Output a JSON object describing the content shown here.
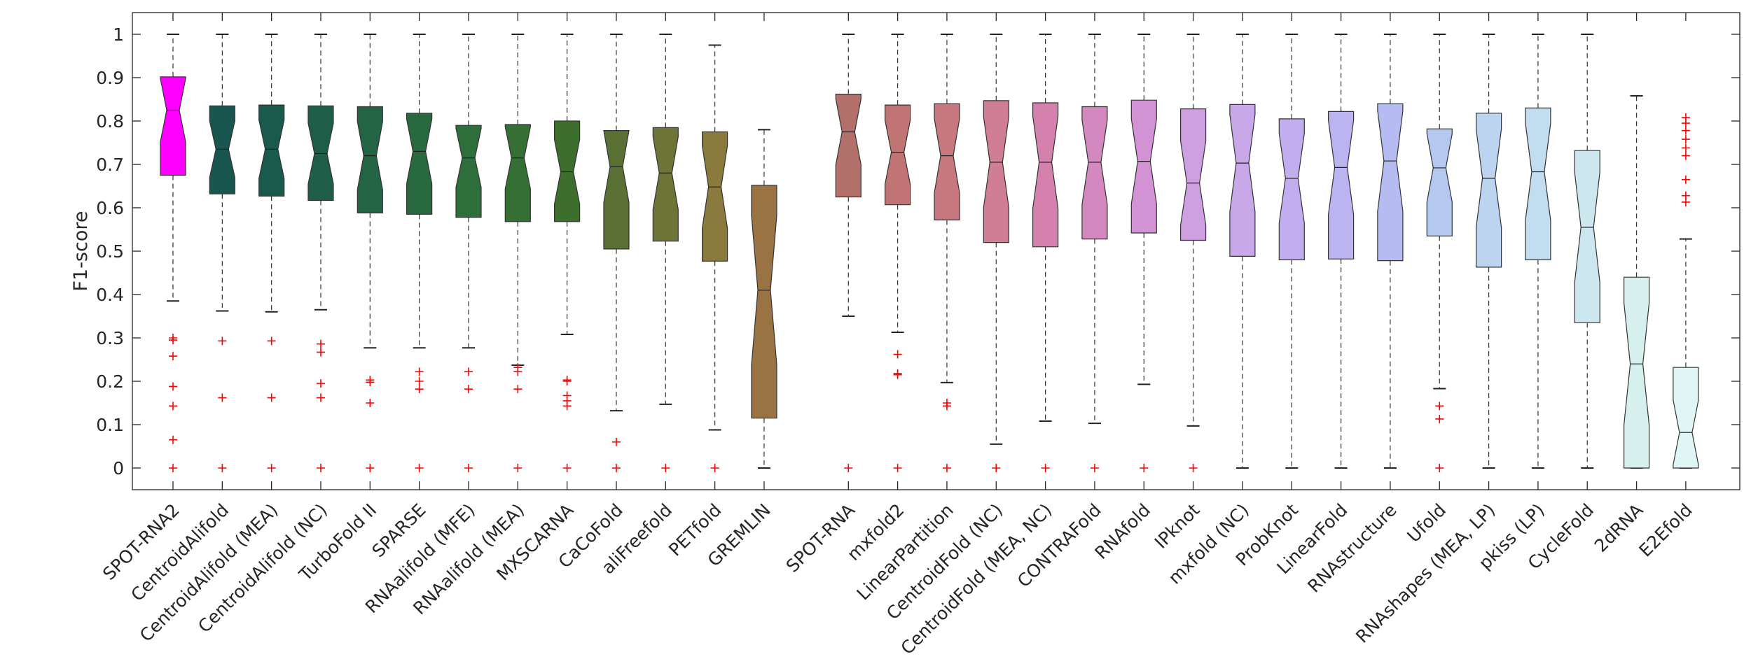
{
  "chart_data": {
    "type": "boxplot",
    "ylabel": "F1-score",
    "ylim": [
      -0.05,
      1.05
    ],
    "yticks": [
      0,
      0.1,
      0.2,
      0.3,
      0.4,
      0.5,
      0.6,
      0.7,
      0.8,
      0.9,
      1
    ],
    "ytick_labels": [
      "0",
      "0.1",
      "0.2",
      "0.3",
      "0.4",
      "0.5",
      "0.6",
      "0.7",
      "0.8",
      "0.9",
      "1"
    ],
    "notched": true,
    "outlier_color": "#ff0000",
    "grid": false,
    "groups": [
      [
        {
          "name": "SPOT-RNA2",
          "color": "#ff00ff",
          "whisker_low": 0.385,
          "q1": 0.675,
          "median": 0.825,
          "q3": 0.902,
          "whisker_high": 1.0,
          "outliers": [
            0.3,
            0.295,
            0.258,
            0.188,
            0.143,
            0.065,
            0.0
          ]
        },
        {
          "name": "CentroidAlifold",
          "color": "#1a5650",
          "whisker_low": 0.362,
          "q1": 0.632,
          "median": 0.735,
          "q3": 0.835,
          "whisker_high": 1.0,
          "outliers": [
            0.293,
            0.162,
            0.0
          ]
        },
        {
          "name": "CentroidAlifold (MEA)",
          "color": "#1a5a4c",
          "whisker_low": 0.36,
          "q1": 0.627,
          "median": 0.735,
          "q3": 0.837,
          "whisker_high": 1.0,
          "outliers": [
            0.293,
            0.162,
            0.0
          ]
        },
        {
          "name": "CentroidAlifold (NC)",
          "color": "#1e5e48",
          "whisker_low": 0.365,
          "q1": 0.617,
          "median": 0.725,
          "q3": 0.835,
          "whisker_high": 1.0,
          "outliers": [
            0.286,
            0.267,
            0.195,
            0.162,
            0.0
          ]
        },
        {
          "name": "TurboFold II",
          "color": "#226444",
          "whisker_low": 0.277,
          "q1": 0.588,
          "median": 0.72,
          "q3": 0.833,
          "whisker_high": 1.0,
          "outliers": [
            0.203,
            0.198,
            0.15,
            0.0
          ]
        },
        {
          "name": "SPARSE",
          "color": "#286a3e",
          "whisker_low": 0.277,
          "q1": 0.585,
          "median": 0.73,
          "q3": 0.818,
          "whisker_high": 1.0,
          "outliers": [
            0.222,
            0.2,
            0.182,
            0.0
          ]
        },
        {
          "name": "RNAalifold (MFE)",
          "color": "#2e6e3a",
          "whisker_low": 0.277,
          "q1": 0.578,
          "median": 0.715,
          "q3": 0.79,
          "whisker_high": 1.0,
          "outliers": [
            0.222,
            0.182,
            0.0
          ]
        },
        {
          "name": "RNAalifold (MEA)",
          "color": "#356f34",
          "whisker_low": 0.237,
          "q1": 0.568,
          "median": 0.715,
          "q3": 0.792,
          "whisker_high": 1.0,
          "outliers": [
            0.232,
            0.222,
            0.182,
            0.0
          ]
        },
        {
          "name": "MXSCARNA",
          "color": "#3e6e2e",
          "whisker_low": 0.308,
          "q1": 0.568,
          "median": 0.683,
          "q3": 0.8,
          "whisker_high": 1.0,
          "outliers": [
            0.203,
            0.2,
            0.167,
            0.155,
            0.143,
            0.0
          ]
        },
        {
          "name": "CaCoFold",
          "color": "#5a7034",
          "whisker_low": 0.132,
          "q1": 0.505,
          "median": 0.695,
          "q3": 0.778,
          "whisker_high": 1.0,
          "outliers": [
            0.06,
            0.0
          ]
        },
        {
          "name": "aliFreefold",
          "color": "#6e7438",
          "whisker_low": 0.147,
          "q1": 0.523,
          "median": 0.68,
          "q3": 0.785,
          "whisker_high": 1.0,
          "outliers": [
            0.0
          ]
        },
        {
          "name": "PETfold",
          "color": "#8a7a3e",
          "whisker_low": 0.088,
          "q1": 0.477,
          "median": 0.648,
          "q3": 0.775,
          "whisker_high": 0.975,
          "outliers": [
            0.0
          ]
        },
        {
          "name": "GREMLIN",
          "color": "#9a7344",
          "whisker_low": 0.0,
          "q1": 0.115,
          "median": 0.41,
          "q3": 0.652,
          "whisker_high": 0.78,
          "outliers": []
        }
      ],
      [
        {
          "name": "SPOT-RNA",
          "color": "#b3706a",
          "whisker_low": 0.35,
          "q1": 0.625,
          "median": 0.775,
          "q3": 0.862,
          "whisker_high": 1.0,
          "outliers": [
            0.0
          ]
        },
        {
          "name": "mxfold2",
          "color": "#c07474",
          "whisker_low": 0.313,
          "q1": 0.607,
          "median": 0.728,
          "q3": 0.837,
          "whisker_high": 1.0,
          "outliers": [
            0.262,
            0.218,
            0.215,
            0.0
          ]
        },
        {
          "name": "LinearPartition",
          "color": "#c8787f",
          "whisker_low": 0.197,
          "q1": 0.572,
          "median": 0.72,
          "q3": 0.84,
          "whisker_high": 1.0,
          "outliers": [
            0.15,
            0.143,
            0.0
          ]
        },
        {
          "name": "CentroidFold (NC)",
          "color": "#d07e96",
          "whisker_low": 0.055,
          "q1": 0.52,
          "median": 0.705,
          "q3": 0.847,
          "whisker_high": 1.0,
          "outliers": [
            0.0
          ]
        },
        {
          "name": "CentroidFold (MEA, NC)",
          "color": "#d482ad",
          "whisker_low": 0.108,
          "q1": 0.51,
          "median": 0.705,
          "q3": 0.842,
          "whisker_high": 1.0,
          "outliers": [
            0.0
          ]
        },
        {
          "name": "CONTRAFold",
          "color": "#d488c0",
          "whisker_low": 0.103,
          "q1": 0.528,
          "median": 0.705,
          "q3": 0.833,
          "whisker_high": 1.0,
          "outliers": [
            0.0
          ]
        },
        {
          "name": "RNAfold",
          "color": "#d292d4",
          "whisker_low": 0.193,
          "q1": 0.542,
          "median": 0.707,
          "q3": 0.848,
          "whisker_high": 1.0,
          "outliers": [
            0.0
          ]
        },
        {
          "name": "IPknot",
          "color": "#cea0e0",
          "whisker_low": 0.097,
          "q1": 0.525,
          "median": 0.657,
          "q3": 0.828,
          "whisker_high": 1.0,
          "outliers": [
            0.0
          ]
        },
        {
          "name": "mxfold (NC)",
          "color": "#c8a8e8",
          "whisker_low": 0.0,
          "q1": 0.488,
          "median": 0.703,
          "q3": 0.838,
          "whisker_high": 1.0,
          "outliers": []
        },
        {
          "name": "ProbKnot",
          "color": "#c2aeee",
          "whisker_low": 0.0,
          "q1": 0.48,
          "median": 0.668,
          "q3": 0.805,
          "whisker_high": 1.0,
          "outliers": []
        },
        {
          "name": "LinearFold",
          "color": "#bcb4f0",
          "whisker_low": 0.0,
          "q1": 0.482,
          "median": 0.693,
          "q3": 0.822,
          "whisker_high": 1.0,
          "outliers": []
        },
        {
          "name": "RNAstructure",
          "color": "#b6bcf2",
          "whisker_low": 0.0,
          "q1": 0.478,
          "median": 0.708,
          "q3": 0.84,
          "whisker_high": 1.0,
          "outliers": []
        },
        {
          "name": "Ufold",
          "color": "#b4c8f0",
          "whisker_low": 0.183,
          "q1": 0.535,
          "median": 0.692,
          "q3": 0.782,
          "whisker_high": 1.0,
          "outliers": [
            0.143,
            0.113,
            0.0
          ]
        },
        {
          "name": "RNAshapes (MEA, LP)",
          "color": "#bcd4f0",
          "whisker_low": 0.0,
          "q1": 0.463,
          "median": 0.668,
          "q3": 0.818,
          "whisker_high": 1.0,
          "outliers": []
        },
        {
          "name": "pkiss (LP)",
          "color": "#c2dcf0",
          "whisker_low": 0.0,
          "q1": 0.48,
          "median": 0.683,
          "q3": 0.83,
          "whisker_high": 1.0,
          "outliers": []
        },
        {
          "name": "CycleFold",
          "color": "#cce8ee",
          "whisker_low": 0.0,
          "q1": 0.335,
          "median": 0.555,
          "q3": 0.732,
          "whisker_high": 1.0,
          "outliers": []
        },
        {
          "name": "2dRNA",
          "color": "#d6f0ee",
          "whisker_low": 0.0,
          "q1": 0.0,
          "median": 0.24,
          "q3": 0.44,
          "whisker_high": 0.858,
          "outliers": []
        },
        {
          "name": "E2Efold",
          "color": "#e0f6f4",
          "whisker_low": 0.0,
          "q1": 0.0,
          "median": 0.082,
          "q3": 0.232,
          "whisker_high": 0.528,
          "outliers": [
            0.808,
            0.795,
            0.778,
            0.758,
            0.738,
            0.72,
            0.665,
            0.628,
            0.613
          ]
        }
      ]
    ]
  }
}
